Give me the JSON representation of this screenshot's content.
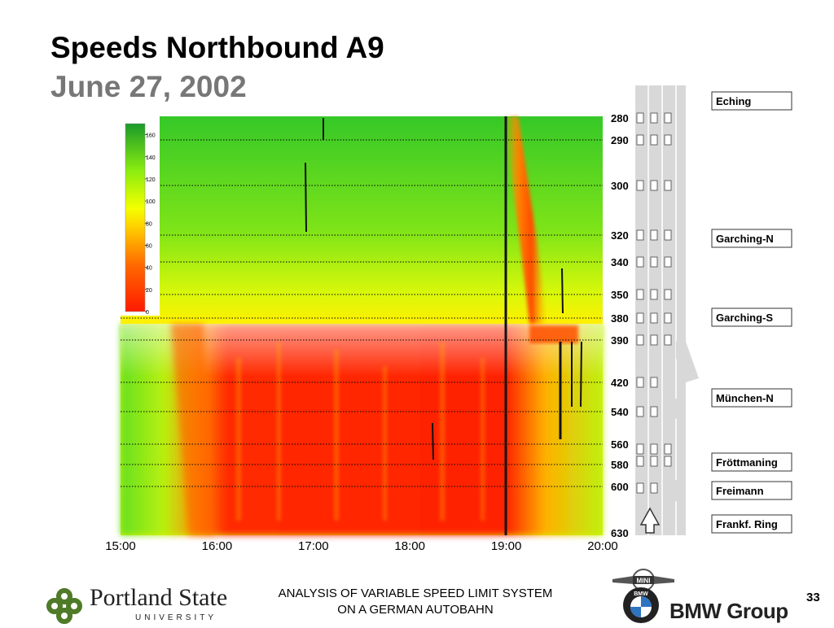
{
  "title": "Speeds Northbound A9",
  "subtitle": "June 27, 2002",
  "chart_data": {
    "type": "heatmap",
    "x_ticks": [
      "15:00",
      "16:00",
      "17:00",
      "18:00",
      "19:00",
      "20:00"
    ],
    "y_ticks": [
      "280",
      "290",
      "300",
      "320",
      "340",
      "350",
      "380",
      "390",
      "420",
      "540",
      "560",
      "580",
      "600",
      "630"
    ],
    "colorbar_ticks": [
      "160",
      "140",
      "120",
      "100",
      "80",
      "60",
      "40",
      "20",
      "0"
    ],
    "colorbar_range": [
      0,
      170
    ],
    "colorscale": [
      "#ff1a00",
      "#ff5a00",
      "#ffa000",
      "#ffe000",
      "#f0ff00",
      "#b8ff10",
      "#78f010",
      "#44d820",
      "#22b030"
    ],
    "interchanges": [
      "Eching",
      "Garching-N",
      "Garching-S",
      "München-N",
      "Fröttmaning",
      "Freimann",
      "Frankf. Ring"
    ],
    "speed_regimes": [
      {
        "x_range": [
          "15:00",
          "20:00"
        ],
        "y_range": [
          "280",
          "380"
        ],
        "speed_approx": 130
      },
      {
        "x_range": [
          "16:00",
          "19:00"
        ],
        "y_range": [
          "390",
          "630"
        ],
        "speed_approx": 25
      },
      {
        "x_range": [
          "19:00",
          "19:40"
        ],
        "y_range": [
          "280",
          "350"
        ],
        "speed_approx": 50
      }
    ]
  },
  "footer": {
    "line1": "ANALYSIS OF VARIABLE SPEED LIMIT SYSTEM",
    "line2": "ON A GERMAN AUTOBAHN",
    "page_number": "33"
  },
  "logos": {
    "psu_name": "Portland State",
    "psu_sub": "UNIVERSITY",
    "bmw_mark": "BMW",
    "mini_mark": "MINI",
    "bmw_group": "BMW Group"
  }
}
